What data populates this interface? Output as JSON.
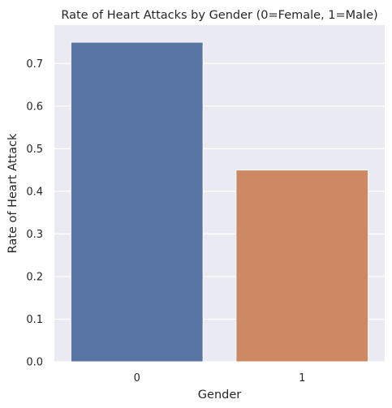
{
  "chart_data": {
    "type": "bar",
    "title": "Rate of Heart Attacks by Gender (0=Female, 1=Male)",
    "xlabel": "Gender",
    "ylabel": "Rate of Heart Attack",
    "categories": [
      "0",
      "1"
    ],
    "values": [
      0.75,
      0.45
    ],
    "colors": [
      "#5875a4",
      "#cc8963"
    ],
    "ylim": [
      0,
      0.79
    ],
    "yticks": [
      0.0,
      0.1,
      0.2,
      0.3,
      0.4,
      0.5,
      0.6,
      0.7
    ],
    "ytick_labels": [
      "0.0",
      "0.1",
      "0.2",
      "0.3",
      "0.4",
      "0.5",
      "0.6",
      "0.7"
    ],
    "grid": true,
    "background": "#eaeaf2",
    "gridline_color": "#ffffff"
  }
}
